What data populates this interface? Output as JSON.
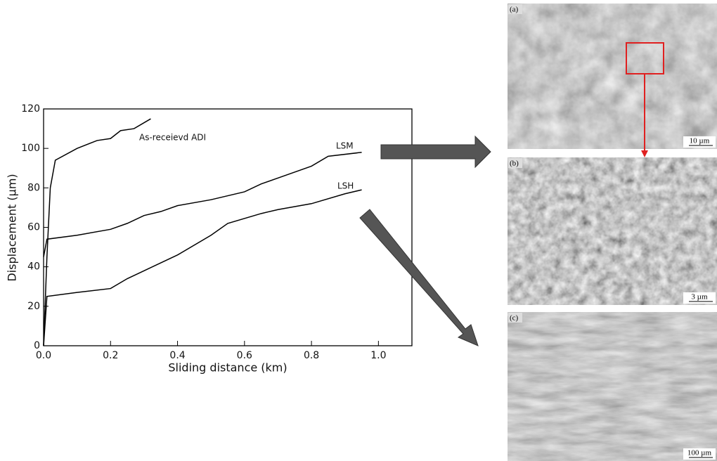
{
  "chart_data": {
    "type": "line",
    "xlabel": "Sliding distance (km)",
    "ylabel": "Displacement (µm)",
    "xlim": [
      0,
      1.1
    ],
    "ylim": [
      0,
      120
    ],
    "xticks": [
      {
        "value": 0,
        "label": "0.0"
      },
      0.2,
      0.4,
      0.6,
      0.8,
      {
        "value": 1,
        "label": "1.0"
      }
    ],
    "yticks": [
      0,
      20,
      40,
      60,
      80,
      100,
      120
    ],
    "color": "#000000",
    "series": [
      {
        "name": "As-receievd ADI",
        "x": [
          0,
          0.01,
          0.02,
          0.035,
          0.1,
          0.16,
          0.2,
          0.23,
          0.27,
          0.32
        ],
        "values": [
          0,
          45,
          80,
          94,
          100,
          104,
          105,
          109,
          110,
          115
        ]
      },
      {
        "name": "LSM",
        "x": [
          0,
          0.01,
          0.1,
          0.2,
          0.25,
          0.3,
          0.35,
          0.4,
          0.5,
          0.6,
          0.65,
          0.7,
          0.8,
          0.85,
          0.95
        ],
        "values": [
          45,
          54,
          56,
          59,
          62,
          66,
          68,
          71,
          74,
          78,
          82,
          85,
          91,
          96,
          98
        ]
      },
      {
        "name": "LSH",
        "x": [
          0,
          0.01,
          0.1,
          0.2,
          0.25,
          0.3,
          0.4,
          0.5,
          0.55,
          0.65,
          0.7,
          0.8,
          0.9,
          0.95
        ],
        "values": [
          0,
          25,
          27,
          29,
          34,
          38,
          46,
          56,
          62,
          67,
          69,
          72,
          77,
          79
        ]
      }
    ]
  },
  "images": [
    {
      "label": "(a)",
      "scale": "10 µm"
    },
    {
      "label": "(b)",
      "scale": "3 µm"
    },
    {
      "label": "(c)",
      "scale": "100 µm"
    }
  ]
}
